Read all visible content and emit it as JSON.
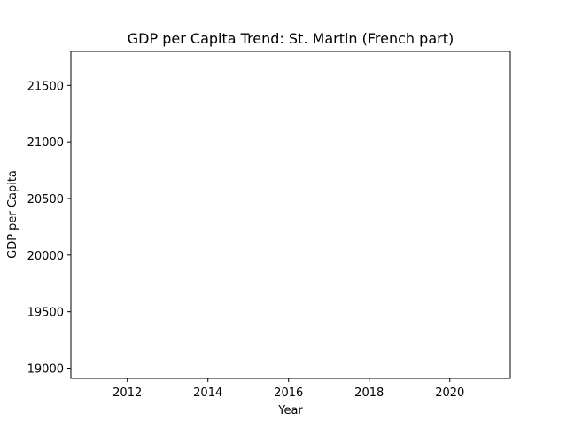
{
  "chart_data": {
    "type": "line",
    "title": "GDP per Capita Trend: St. Martin (French part)",
    "xlabel": "Year",
    "ylabel": "GDP per Capita",
    "xlim": [
      2010.6,
      2021.5
    ],
    "ylim": [
      18910,
      21800
    ],
    "xticks": [
      2012,
      2014,
      2016,
      2018,
      2020
    ],
    "yticks": [
      19000,
      19500,
      20000,
      20500,
      21000,
      21500
    ],
    "grid": false,
    "series": []
  }
}
